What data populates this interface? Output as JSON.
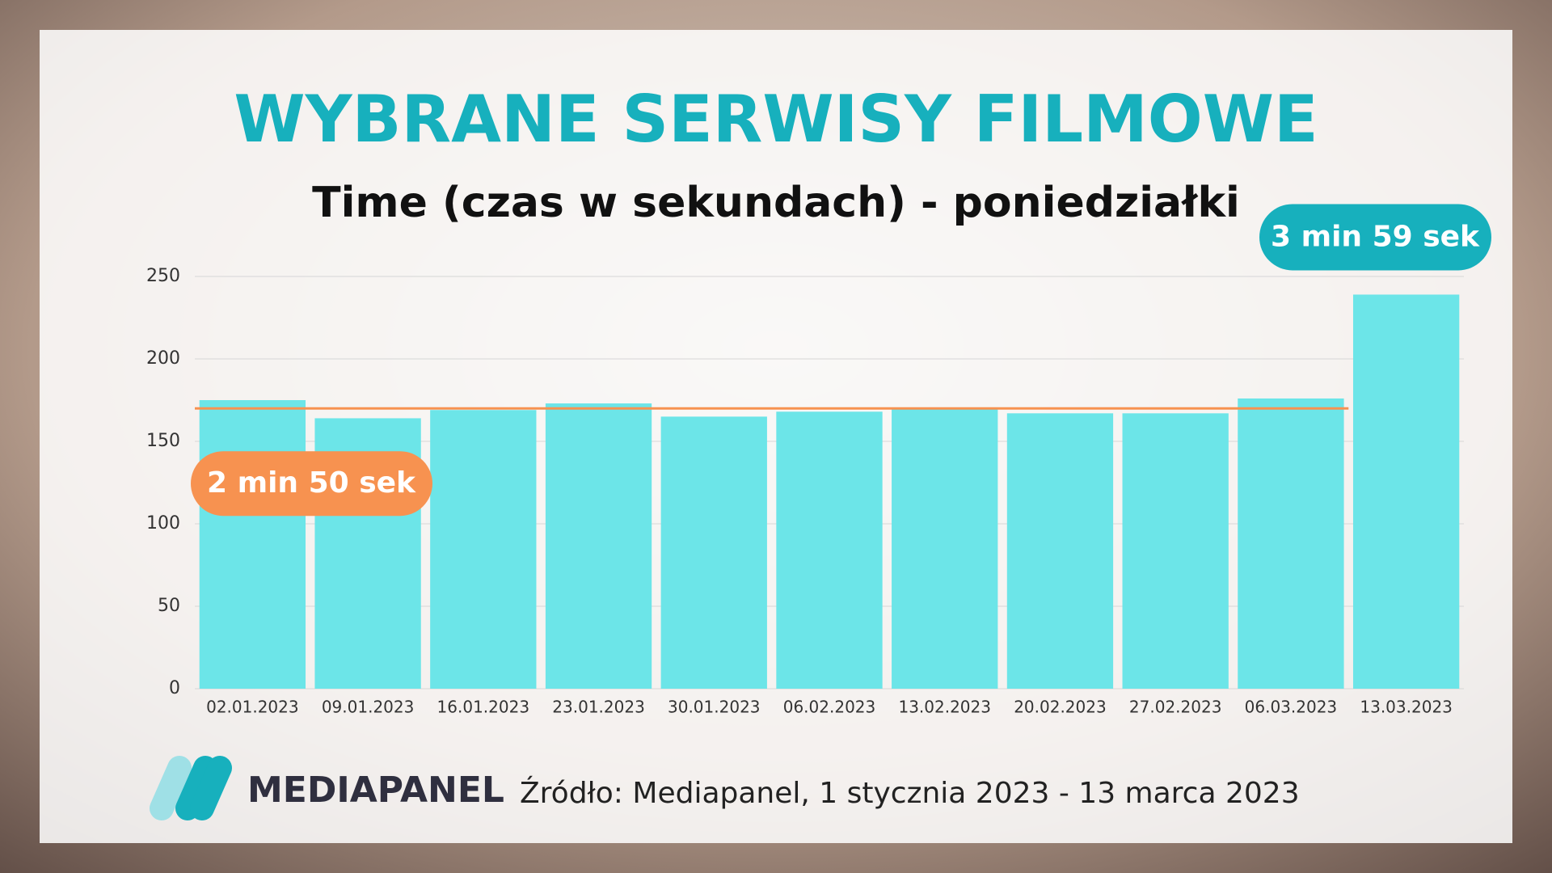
{
  "chart_data": {
    "type": "bar",
    "title": "WYBRANE SERWISY FILMOWE",
    "subtitle": "Time (czas w sekundach) - poniedziałki",
    "categories": [
      "02.01.2023",
      "09.01.2023",
      "16.01.2023",
      "23.01.2023",
      "30.01.2023",
      "06.02.2023",
      "13.02.2023",
      "20.02.2023",
      "27.02.2023",
      "06.03.2023",
      "13.03.2023"
    ],
    "values": [
      175,
      164,
      169,
      173,
      165,
      168,
      170,
      167,
      167,
      176,
      239
    ],
    "color": "#6ce5e8",
    "ylim": [
      0,
      250
    ],
    "yticks": [
      0,
      50,
      100,
      150,
      200,
      250
    ],
    "grid": true,
    "reference_line": {
      "value": 170,
      "label": "2 min 50 sek",
      "color": "#f79250"
    },
    "peak_label": {
      "value": 239,
      "label": "3 min 59 sek",
      "color": "#17b0bd"
    }
  },
  "brand": "MEDIAPANEL",
  "source": "Źródło: Mediapanel, 1 stycznia 2023 - 13 marca 2023"
}
